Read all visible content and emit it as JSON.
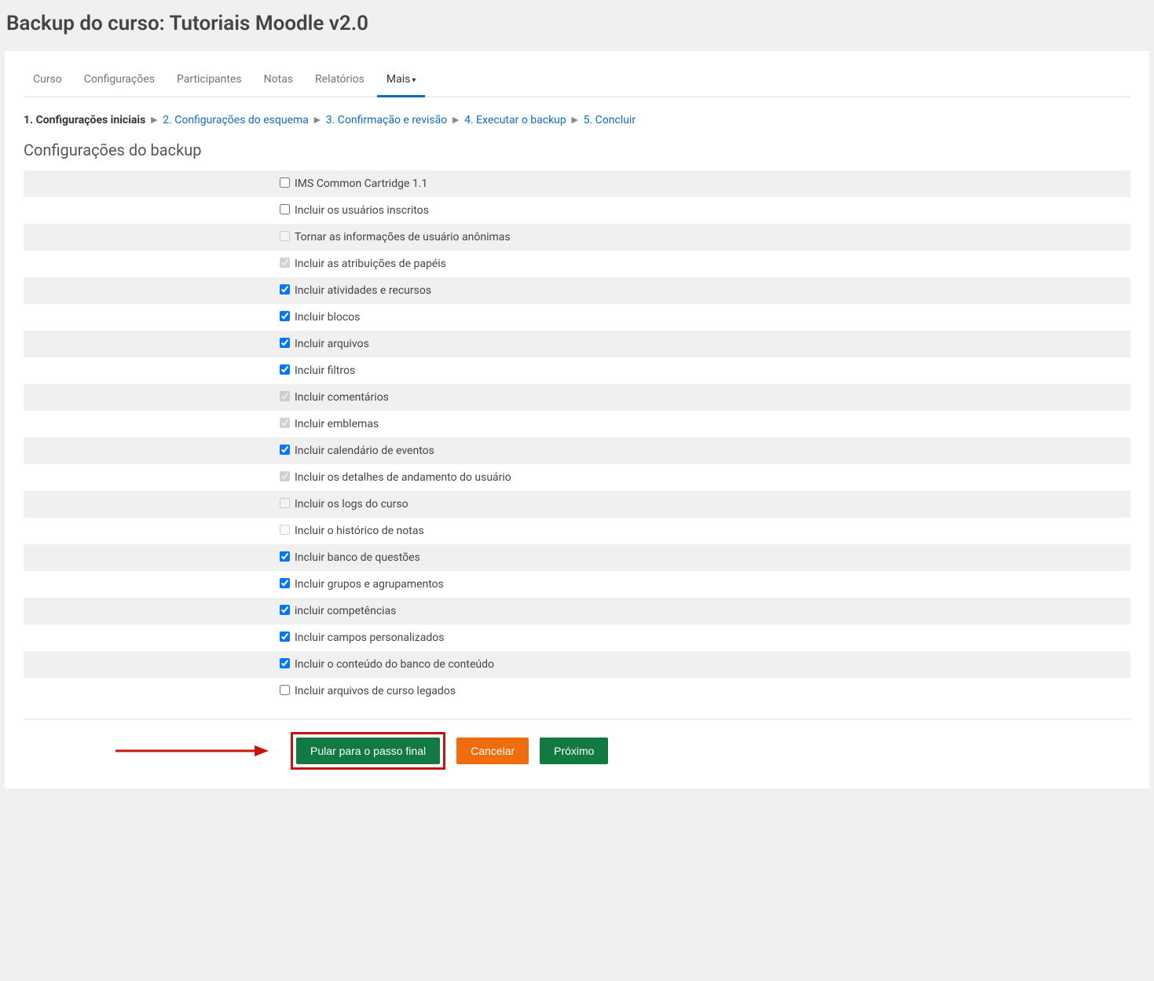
{
  "page": {
    "title": "Backup do curso: Tutoriais Moodle v2.0"
  },
  "tabs": [
    {
      "label": "Curso",
      "active": false
    },
    {
      "label": "Configurações",
      "active": false
    },
    {
      "label": "Participantes",
      "active": false
    },
    {
      "label": "Notas",
      "active": false
    },
    {
      "label": "Relatórios",
      "active": false
    },
    {
      "label": "Mais",
      "active": true,
      "dropdown": true
    }
  ],
  "wizard": [
    {
      "label": "1. Configurações iniciais",
      "current": true
    },
    {
      "label": "2. Configurações do esquema",
      "current": false
    },
    {
      "label": "3. Confirmação e revisão",
      "current": false
    },
    {
      "label": "4. Executar o backup",
      "current": false
    },
    {
      "label": "5. Concluir",
      "current": false
    }
  ],
  "section_heading": "Configurações do backup",
  "options": [
    {
      "label": "IMS Common Cartridge 1.1",
      "checked": false,
      "disabled": false,
      "striped": true
    },
    {
      "label": "Incluir os usuários inscritos",
      "checked": false,
      "disabled": false,
      "striped": false
    },
    {
      "label": "Tornar as informações de usuário anônimas",
      "checked": false,
      "disabled": true,
      "striped": true
    },
    {
      "label": "Incluir as atribuições de papéis",
      "checked": true,
      "disabled": true,
      "striped": false
    },
    {
      "label": "Incluir atividades e recursos",
      "checked": true,
      "disabled": false,
      "striped": true
    },
    {
      "label": "Incluir blocos",
      "checked": true,
      "disabled": false,
      "striped": false
    },
    {
      "label": "Incluir arquivos",
      "checked": true,
      "disabled": false,
      "striped": true
    },
    {
      "label": "Incluir filtros",
      "checked": true,
      "disabled": false,
      "striped": false
    },
    {
      "label": "Incluir comentários",
      "checked": true,
      "disabled": true,
      "striped": true
    },
    {
      "label": "Incluir emblemas",
      "checked": true,
      "disabled": true,
      "striped": false
    },
    {
      "label": "Incluir calendário de eventos",
      "checked": true,
      "disabled": false,
      "striped": true
    },
    {
      "label": "Incluir os detalhes de andamento do usuário",
      "checked": true,
      "disabled": true,
      "striped": false
    },
    {
      "label": "Incluir os logs do curso",
      "checked": false,
      "disabled": true,
      "striped": true
    },
    {
      "label": "Incluir o histórico de notas",
      "checked": false,
      "disabled": true,
      "striped": false
    },
    {
      "label": "Incluir banco de questões",
      "checked": true,
      "disabled": false,
      "striped": true
    },
    {
      "label": "Incluir grupos e agrupamentos",
      "checked": true,
      "disabled": false,
      "striped": false
    },
    {
      "label": "incluir competências",
      "checked": true,
      "disabled": false,
      "striped": true
    },
    {
      "label": "Incluir campos personalizados",
      "checked": true,
      "disabled": false,
      "striped": false
    },
    {
      "label": "Incluir o conteúdo do banco de conteúdo",
      "checked": true,
      "disabled": false,
      "striped": true
    },
    {
      "label": "Incluir arquivos de curso legados",
      "checked": false,
      "disabled": false,
      "striped": false
    }
  ],
  "buttons": {
    "skip": "Pular para o passo final",
    "cancel": "Cancelar",
    "next": "Próximo"
  },
  "colors": {
    "highlight_border": "#c4170c",
    "btn_green": "#127940",
    "btn_orange": "#f06d0e",
    "tab_active_border": "#0f6cbf",
    "link": "#0f6cbf"
  }
}
